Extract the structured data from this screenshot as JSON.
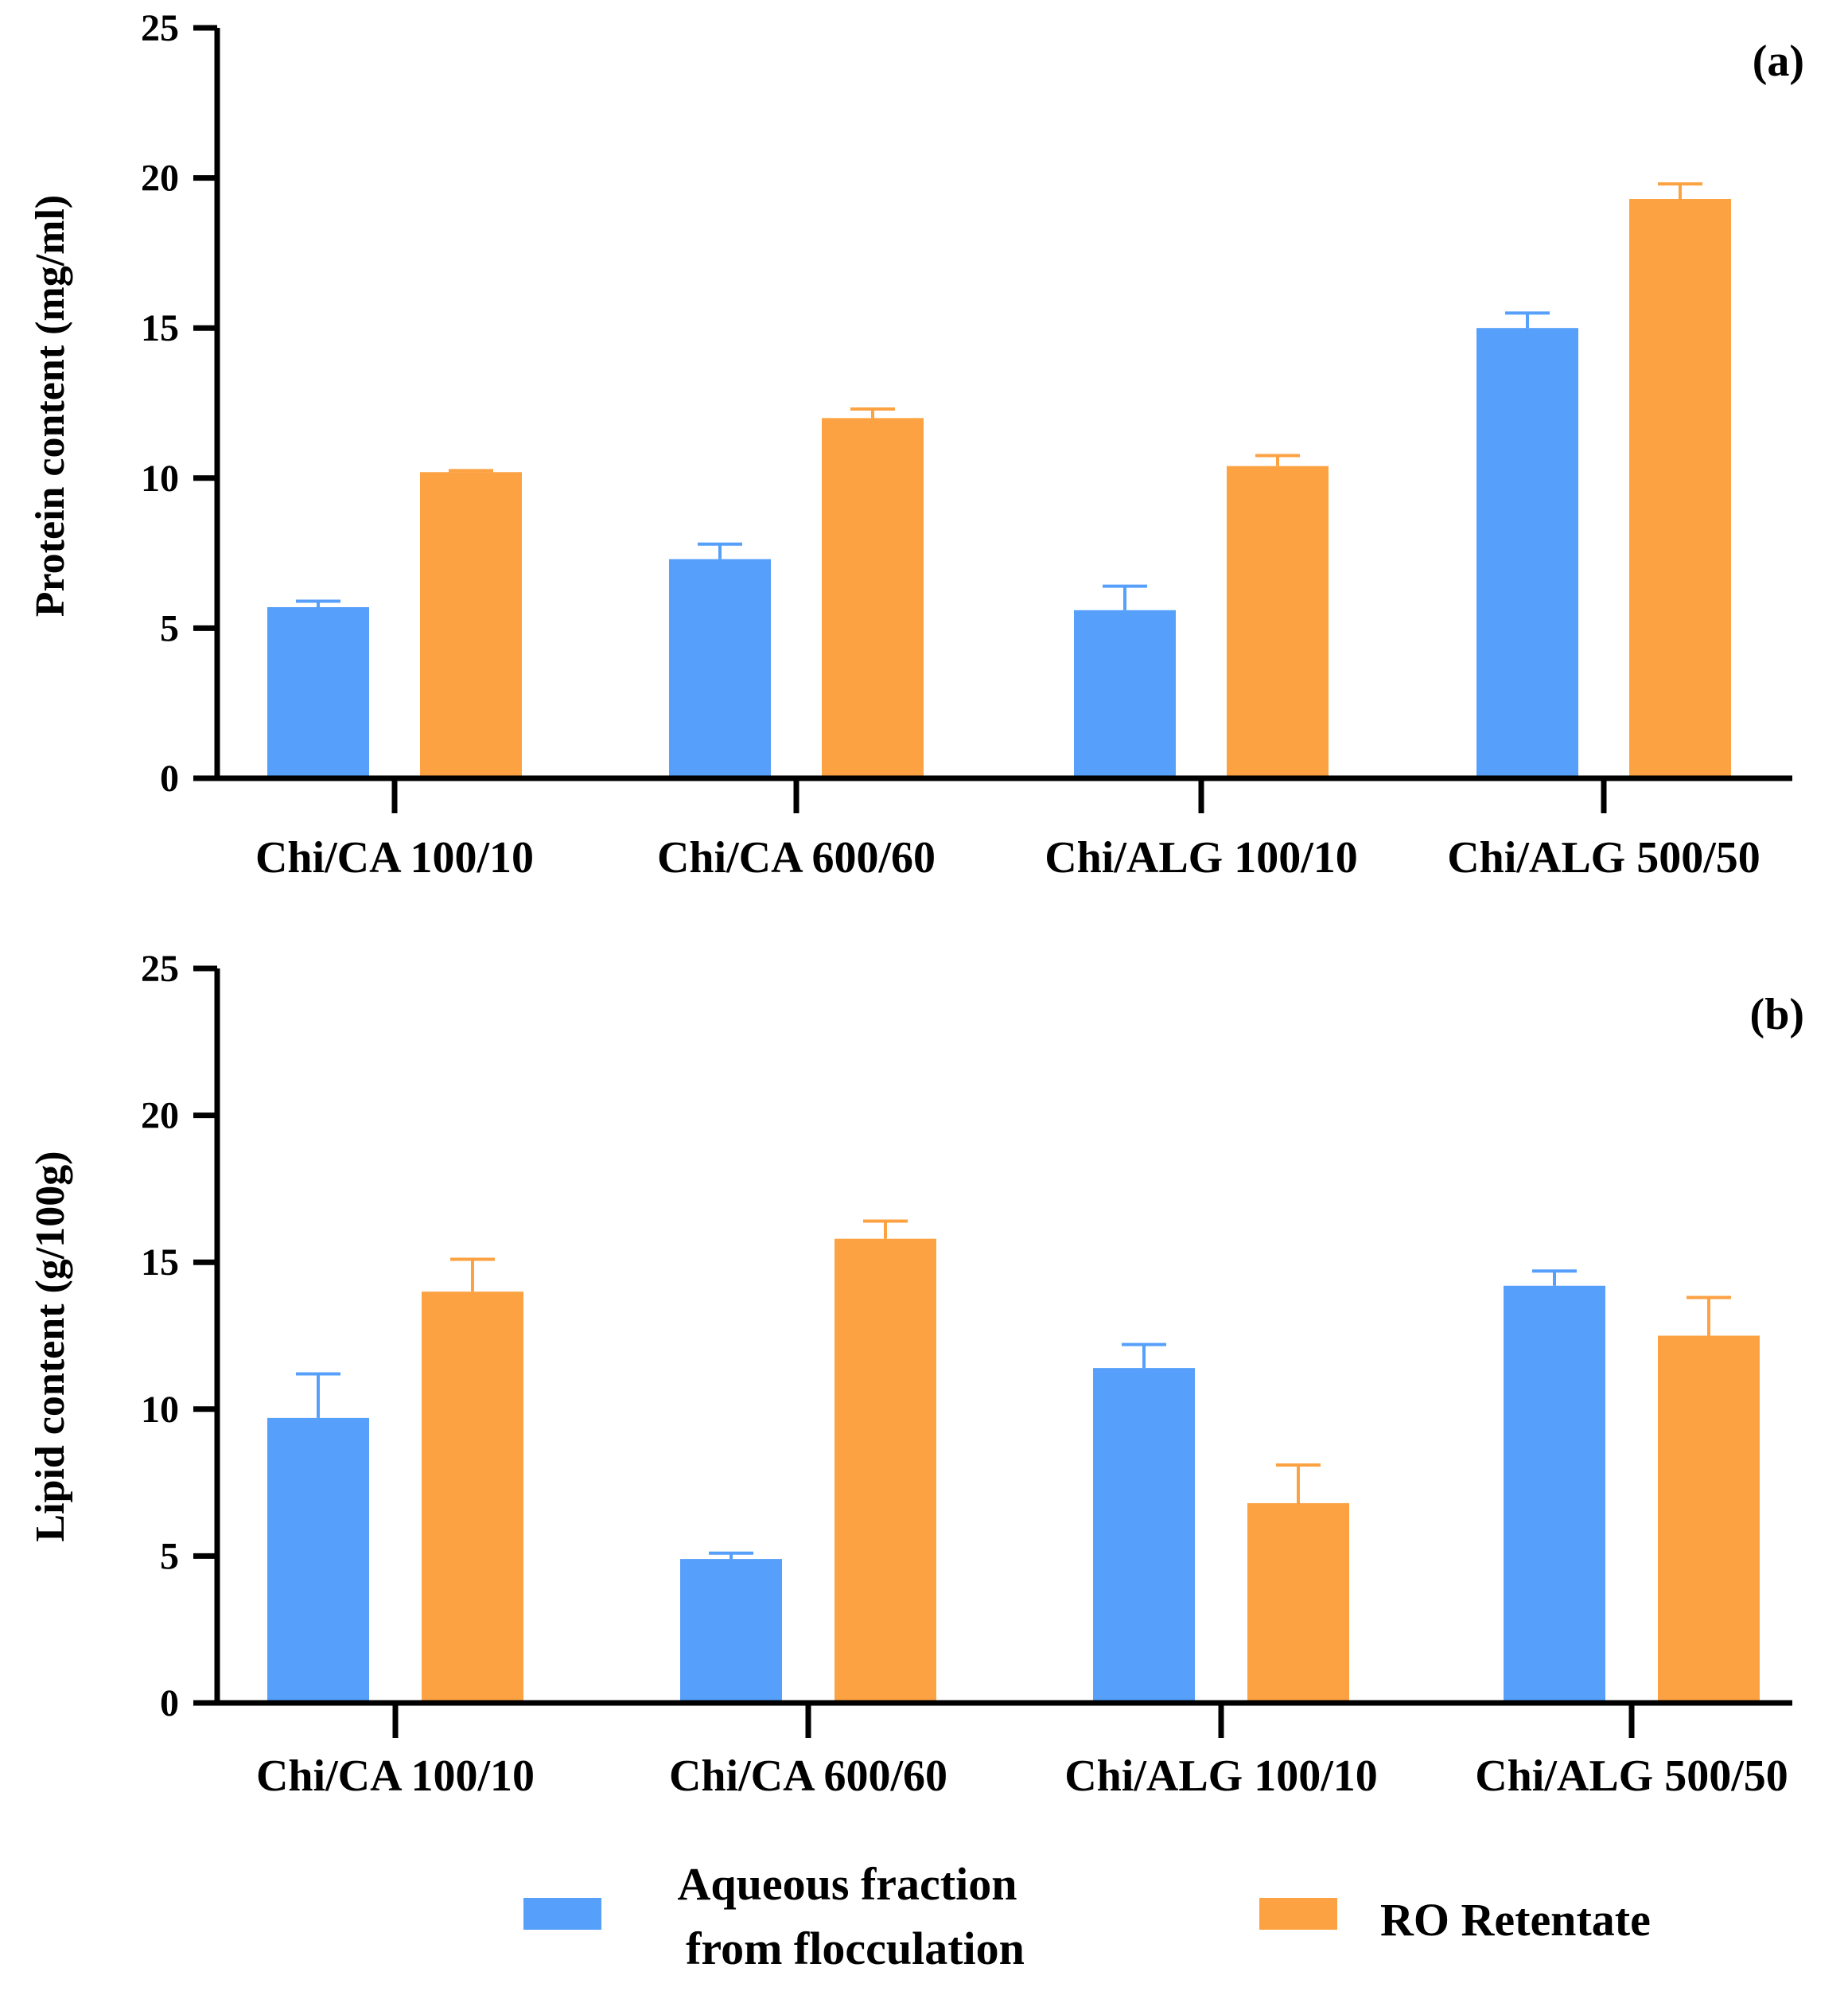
{
  "colors": {
    "aqueous": "#56a0fb",
    "ro": "#fda243",
    "axis": "#000000"
  },
  "legend": {
    "aqueous_line1": "Aqueous fraction",
    "aqueous_line2": "from flocculation",
    "ro": "RO Retentate"
  },
  "chart_data": [
    {
      "type": "bar",
      "panel_label": "(a)",
      "title": "",
      "xlabel": "",
      "ylabel": "Protein content (mg/ml)",
      "ylim": [
        0,
        25
      ],
      "yticks": [
        0,
        5,
        10,
        15,
        20,
        25
      ],
      "categories": [
        "Chi/CA 100/10",
        "Chi/CA 600/60",
        "Chi/ALG 100/10",
        "Chi/ALG 500/50"
      ],
      "series": [
        {
          "name": "Aqueous fraction from flocculation",
          "values": [
            5.7,
            7.3,
            5.6,
            15.0
          ],
          "errors": [
            0.2,
            0.5,
            0.8,
            0.5
          ]
        },
        {
          "name": "RO Retentate",
          "values": [
            10.2,
            12.0,
            10.4,
            19.3
          ],
          "errors": [
            0.05,
            0.3,
            0.35,
            0.5
          ]
        }
      ]
    },
    {
      "type": "bar",
      "panel_label": "(b)",
      "title": "",
      "xlabel": "",
      "ylabel": "Lipid content (g/100g)",
      "ylim": [
        0,
        25
      ],
      "yticks": [
        0,
        5,
        10,
        15,
        20,
        25
      ],
      "categories": [
        "Chi/CA 100/10",
        "Chi/CA 600/60",
        "Chi/ALG 100/10",
        "Chi/ALG 500/50"
      ],
      "series": [
        {
          "name": "Aqueous fraction from flocculation",
          "values": [
            9.7,
            4.9,
            11.4,
            14.2
          ],
          "errors": [
            1.5,
            0.2,
            0.8,
            0.5
          ]
        },
        {
          "name": "RO Retentate",
          "values": [
            14.0,
            15.8,
            6.8,
            12.5
          ],
          "errors": [
            1.1,
            0.6,
            1.3,
            1.3
          ]
        }
      ]
    }
  ]
}
